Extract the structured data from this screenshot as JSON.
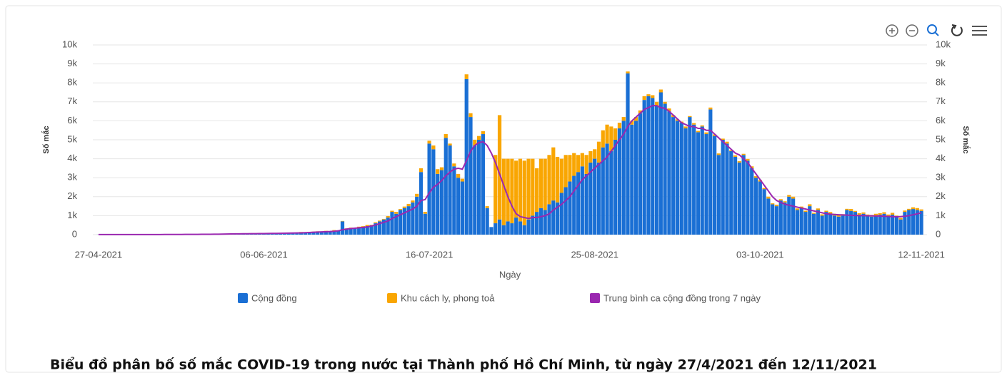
{
  "chart_data": {
    "type": "bar",
    "stacked": true,
    "caption": "Biểu đồ phân bố số mắc COVID-19 trong nước tại Thành phố Hồ Chí Minh, từ ngày 27/4/2021 đến 12/11/2021",
    "x_label": "Ngày",
    "y_label": "Số mắc",
    "y2_label": "Số mắc",
    "categories": [
      "27-04-2021",
      null,
      null,
      null,
      null,
      null,
      null,
      null,
      null,
      null,
      null,
      null,
      null,
      null,
      null,
      null,
      null,
      null,
      null,
      null,
      null,
      null,
      null,
      null,
      null,
      null,
      null,
      null,
      null,
      null,
      null,
      null,
      null,
      null,
      null,
      null,
      null,
      null,
      null,
      null,
      "06-06-2021",
      null,
      null,
      null,
      null,
      null,
      null,
      null,
      null,
      null,
      null,
      null,
      null,
      null,
      null,
      null,
      null,
      null,
      null,
      null,
      null,
      null,
      null,
      null,
      null,
      null,
      null,
      null,
      null,
      null,
      null,
      null,
      null,
      null,
      null,
      null,
      null,
      null,
      null,
      null,
      "16-07-2021",
      null,
      null,
      null,
      null,
      null,
      null,
      null,
      null,
      null,
      null,
      null,
      null,
      null,
      null,
      null,
      null,
      null,
      null,
      null,
      null,
      null,
      null,
      null,
      null,
      null,
      null,
      null,
      null,
      null,
      null,
      null,
      null,
      null,
      null,
      null,
      null,
      null,
      null,
      null,
      "25-08-2021",
      null,
      null,
      null,
      null,
      null,
      null,
      null,
      null,
      null,
      null,
      null,
      null,
      null,
      null,
      null,
      null,
      null,
      null,
      null,
      null,
      null,
      null,
      null,
      null,
      null,
      null,
      null,
      null,
      null,
      null,
      null,
      null,
      null,
      null,
      null,
      null,
      null,
      null,
      null,
      "03-10-2021",
      null,
      null,
      null,
      null,
      null,
      null,
      null,
      null,
      null,
      null,
      null,
      null,
      null,
      null,
      null,
      null,
      null,
      null,
      null,
      null,
      null,
      null,
      null,
      null,
      null,
      null,
      null,
      null,
      null,
      null,
      null,
      null,
      null,
      null,
      null,
      null,
      null,
      null,
      "12-11-2021"
    ],
    "series": [
      {
        "name": "Cộng đồng",
        "color": "#1a6fd4",
        "type": "bar",
        "values": [
          3,
          2,
          4,
          5,
          3,
          2,
          6,
          4,
          5,
          3,
          4,
          6,
          5,
          8,
          7,
          6,
          9,
          8,
          10,
          12,
          10,
          14,
          12,
          15,
          18,
          16,
          20,
          22,
          25,
          30,
          35,
          40,
          45,
          38,
          42,
          50,
          55,
          48,
          60,
          58,
          62,
          70,
          65,
          75,
          80,
          85,
          90,
          95,
          100,
          110,
          120,
          130,
          140,
          150,
          160,
          170,
          180,
          200,
          220,
          700,
          300,
          320,
          350,
          380,
          420,
          450,
          500,
          600,
          700,
          800,
          900,
          1200,
          1100,
          1300,
          1400,
          1500,
          1700,
          2000,
          3300,
          1100,
          4800,
          4500,
          3200,
          3400,
          5100,
          4700,
          3600,
          3000,
          2800,
          8200,
          6200,
          4700,
          5000,
          5300,
          1400,
          400,
          600,
          800,
          500,
          700,
          600,
          900,
          700,
          500,
          800,
          1000,
          1200,
          1400,
          1300,
          1600,
          1800,
          1700,
          2200,
          2500,
          2800,
          3100,
          3300,
          3600,
          3200,
          3800,
          4000,
          3800,
          4600,
          4800,
          4400,
          5000,
          5600,
          6000,
          8500,
          5800,
          6000,
          6400,
          7100,
          7300,
          7200,
          6800,
          7500,
          6900,
          6500,
          6200,
          6000,
          5900,
          5600,
          6200,
          5800,
          5400,
          5700,
          5300,
          6600,
          5200,
          4200,
          5000,
          4800,
          4400,
          4100,
          3800,
          4200,
          3900,
          3500,
          3000,
          2800,
          2400,
          1900,
          1600,
          1500,
          1800,
          1700,
          2000,
          1900,
          1300,
          1400,
          1200,
          1500,
          1100,
          1300,
          1000,
          1200,
          1100,
          1000,
          950,
          1000,
          1300,
          1250,
          1200,
          1050,
          1100,
          1000,
          950,
          1000,
          1050,
          1100,
          1000,
          1050,
          950,
          800,
          1200,
          1300,
          1350,
          1300,
          1250
        ]
      },
      {
        "name": "Khu cách ly, phong toả",
        "color": "#f9a602",
        "type": "bar",
        "values": [
          0,
          0,
          0,
          0,
          0,
          0,
          0,
          0,
          0,
          0,
          0,
          0,
          0,
          0,
          0,
          0,
          0,
          0,
          0,
          0,
          0,
          0,
          0,
          0,
          0,
          0,
          0,
          0,
          0,
          0,
          0,
          0,
          0,
          0,
          0,
          0,
          0,
          0,
          0,
          0,
          0,
          0,
          0,
          0,
          0,
          20,
          0,
          15,
          0,
          30,
          10,
          0,
          20,
          25,
          0,
          30,
          10,
          40,
          0,
          20,
          30,
          50,
          0,
          40,
          30,
          60,
          20,
          50,
          40,
          30,
          80,
          60,
          100,
          50,
          80,
          120,
          100,
          150,
          200,
          100,
          150,
          200,
          250,
          150,
          200,
          100,
          150,
          200,
          150,
          250,
          200,
          300,
          200,
          150,
          100,
          0,
          3600,
          5500,
          3500,
          3300,
          3400,
          3000,
          3300,
          3400,
          3200,
          3000,
          2300,
          2600,
          2700,
          2600,
          2800,
          2400,
          1800,
          1700,
          1400,
          1200,
          900,
          700,
          1000,
          600,
          500,
          1100,
          900,
          1000,
          1300,
          600,
          300,
          200,
          100,
          200,
          200,
          150,
          200,
          100,
          150,
          200,
          150,
          100,
          150,
          100,
          80,
          60,
          100,
          50,
          80,
          70,
          60,
          90,
          100,
          80,
          80,
          60,
          100,
          50,
          80,
          70,
          60,
          90,
          100,
          80,
          80,
          60,
          100,
          50,
          80,
          70,
          60,
          90,
          100,
          80,
          80,
          60,
          100,
          50,
          80,
          70,
          60,
          90,
          100,
          80,
          80,
          60,
          100,
          50,
          80,
          70,
          60,
          90,
          100,
          80,
          80,
          60,
          100,
          50,
          80,
          70,
          60,
          90,
          100,
          80
        ]
      },
      {
        "name": "Trung bình ca cộng đồng trong 7 ngày",
        "color": "#9a27b0",
        "type": "line",
        "axis": "y2",
        "values": [
          3,
          3,
          3,
          3,
          4,
          4,
          4,
          4,
          4,
          4,
          5,
          5,
          6,
          6,
          7,
          7,
          8,
          8,
          9,
          10,
          11,
          12,
          13,
          14,
          15,
          17,
          18,
          20,
          22,
          25,
          28,
          32,
          36,
          40,
          43,
          46,
          48,
          50,
          52,
          55,
          58,
          62,
          65,
          68,
          72,
          76,
          80,
          85,
          90,
          96,
          105,
          115,
          125,
          135,
          145,
          155,
          165,
          180,
          200,
          260,
          290,
          320,
          340,
          360,
          380,
          410,
          450,
          510,
          580,
          650,
          720,
          850,
          950,
          1050,
          1150,
          1250,
          1350,
          1500,
          1800,
          1850,
          2200,
          2500,
          2650,
          2850,
          3100,
          3300,
          3450,
          3500,
          3450,
          3900,
          4400,
          4700,
          4850,
          4900,
          4700,
          4300,
          3800,
          3200,
          2600,
          2000,
          1500,
          1100,
          950,
          900,
          850,
          900,
          900,
          950,
          1000,
          1100,
          1300,
          1450,
          1600,
          1800,
          2000,
          2300,
          2600,
          2900,
          3100,
          3300,
          3500,
          3700,
          3900,
          4100,
          4400,
          4700,
          5000,
          5300,
          5700,
          6000,
          6200,
          6400,
          6600,
          6700,
          6800,
          6800,
          6700,
          6650,
          6500,
          6300,
          6100,
          5900,
          5800,
          5700,
          5700,
          5600,
          5600,
          5500,
          5500,
          5300,
          5100,
          4900,
          4700,
          4500,
          4300,
          4200,
          4000,
          3800,
          3500,
          3200,
          2900,
          2600,
          2300,
          2000,
          1800,
          1700,
          1600,
          1550,
          1500,
          1450,
          1400,
          1350,
          1300,
          1250,
          1200,
          1150,
          1100,
          1080,
          1060,
          1050,
          1040,
          1030,
          1020,
          1010,
          1000,
          1000,
          990,
          990,
          980,
          980,
          970,
          960,
          950,
          940,
          950,
          970,
          1000,
          1050,
          1100,
          1150
        ]
      }
    ],
    "ylim": [
      0,
      10000
    ],
    "yticks": [
      0,
      {
        "value": 1000,
        "label": "1k"
      },
      {
        "value": 2000,
        "label": "2k"
      },
      {
        "value": 3000,
        "label": "3k"
      },
      {
        "value": 4000,
        "label": "4k"
      },
      {
        "value": 5000,
        "label": "5k"
      },
      {
        "value": 6000,
        "label": "6k"
      },
      {
        "value": 7000,
        "label": "7k"
      },
      {
        "value": 8000,
        "label": "8k"
      },
      {
        "value": 9000,
        "label": "9k"
      },
      {
        "value": 10000,
        "label": "10k"
      }
    ],
    "y2lim": [
      0,
      10000
    ],
    "y2ticks": [
      0,
      {
        "value": 1000,
        "label": "1k"
      },
      {
        "value": 2000,
        "label": "2k"
      },
      {
        "value": 3000,
        "label": "3k"
      },
      {
        "value": 4000,
        "label": "4k"
      },
      {
        "value": 5000,
        "label": "5k"
      },
      {
        "value": 6000,
        "label": "6k"
      },
      {
        "value": 7000,
        "label": "7k"
      },
      {
        "value": 8000,
        "label": "8k"
      },
      {
        "value": 9000,
        "label": "9k"
      },
      {
        "value": 10000,
        "label": "10k"
      }
    ],
    "grid": true
  }
}
